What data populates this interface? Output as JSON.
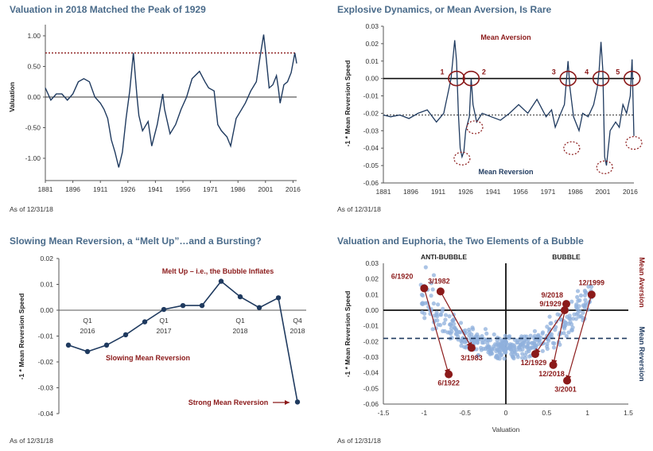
{
  "colors": {
    "title": "#4a6b8a",
    "series": "#1f3a5f",
    "accent": "#8b1a1a",
    "scatter": "#8fb0dc"
  },
  "panels": [
    {
      "title": "Valuation in 2018 Matched the Peak of 1929",
      "asof": "As of 12/31/18"
    },
    {
      "title": "Explosive Dynamics, or Mean Aversion, Is Rare",
      "asof": "As of 12/31/18"
    },
    {
      "title": "Slowing Mean Reversion, a “Melt Up”…and a Bursting?",
      "asof": "As of 12/31/18"
    },
    {
      "title": "Valuation and Euphoria, the Two Elements of a Bubble",
      "asof": "As of 12/31/18"
    }
  ],
  "chart_data": [
    {
      "type": "line",
      "title": "Valuation in 2018 Matched the Peak of 1929",
      "ylabel": "Valuation",
      "xlim": [
        1881,
        2018
      ],
      "ylim": [
        -1.25,
        1.1
      ],
      "xticks": [
        "1881",
        "1896",
        "1911",
        "1926",
        "1941",
        "1956",
        "1971",
        "1986",
        "2001",
        "2016"
      ],
      "yticks": [
        "1.00",
        "0.50",
        "0.00",
        "-0.50",
        "-1.00"
      ],
      "reference_line": {
        "value": 0.72,
        "style": "dotted"
      },
      "x": [
        1881,
        1884,
        1887,
        1890,
        1893,
        1896,
        1899,
        1902,
        1905,
        1908,
        1911,
        1913,
        1915,
        1917,
        1919,
        1921,
        1923,
        1925,
        1927,
        1929,
        1931,
        1932,
        1934,
        1937,
        1939,
        1942,
        1945,
        1946,
        1949,
        1952,
        1955,
        1958,
        1961,
        1965,
        1968,
        1970,
        1973,
        1975,
        1977,
        1980,
        1982,
        1985,
        1987,
        1990,
        1993,
        1996,
        1998,
        2000,
        2001,
        2003,
        2005,
        2007,
        2008,
        2009,
        2011,
        2013,
        2015,
        2017,
        2018
      ],
      "y": [
        0.15,
        -0.05,
        0.05,
        0.05,
        -0.05,
        0.05,
        0.25,
        0.3,
        0.25,
        0.0,
        -0.1,
        -0.2,
        -0.35,
        -0.7,
        -0.9,
        -1.15,
        -0.9,
        -0.35,
        0.1,
        0.72,
        0.0,
        -0.3,
        -0.55,
        -0.4,
        -0.8,
        -0.45,
        0.05,
        -0.2,
        -0.6,
        -0.45,
        -0.2,
        0.0,
        0.3,
        0.42,
        0.25,
        0.15,
        0.1,
        -0.45,
        -0.55,
        -0.65,
        -0.8,
        -0.35,
        -0.25,
        -0.1,
        0.1,
        0.25,
        0.65,
        1.02,
        0.75,
        0.15,
        0.2,
        0.35,
        0.15,
        -0.1,
        0.2,
        0.25,
        0.4,
        0.72,
        0.55
      ]
    },
    {
      "type": "line",
      "title": "Explosive Dynamics, or Mean Aversion, Is Rare",
      "ylabel": "-1 * Mean Reversion Speed",
      "xlim": [
        1881,
        2018
      ],
      "ylim": [
        -0.06,
        0.03
      ],
      "xticks": [
        "1881",
        "1896",
        "1911",
        "1926",
        "1941",
        "1956",
        "1971",
        "1986",
        "2001",
        "2016"
      ],
      "yticks": [
        "0.03",
        "0.02",
        "0.01",
        "0.00",
        "-0.01",
        "-0.02",
        "-0.03",
        "-0.04",
        "-0.05",
        "-0.06"
      ],
      "reference_line": {
        "value": -0.021,
        "style": "dotted"
      },
      "annotations": [
        "Mean Aversion",
        "Mean Reversion"
      ],
      "episode_labels": [
        "1",
        "2",
        "3",
        "4",
        "5"
      ],
      "x": [
        1881,
        1885,
        1890,
        1895,
        1900,
        1905,
        1910,
        1914,
        1916,
        1918,
        1920,
        1921,
        1922,
        1923,
        1924,
        1925,
        1926,
        1928,
        1929,
        1930,
        1932,
        1935,
        1940,
        1945,
        1950,
        1955,
        1960,
        1965,
        1970,
        1973,
        1975,
        1978,
        1980,
        1982,
        1983,
        1985,
        1988,
        1990,
        1993,
        1996,
        1998,
        1999,
        2000,
        2001,
        2002,
        2003,
        2005,
        2008,
        2010,
        2012,
        2014,
        2016,
        2017,
        2018
      ],
      "y": [
        -0.021,
        -0.022,
        -0.021,
        -0.023,
        -0.02,
        -0.018,
        -0.025,
        -0.02,
        -0.01,
        0.0,
        0.022,
        0.01,
        -0.02,
        -0.04,
        -0.045,
        -0.042,
        -0.03,
        -0.022,
        0.0,
        -0.015,
        -0.025,
        -0.02,
        -0.022,
        -0.024,
        -0.02,
        -0.015,
        -0.02,
        -0.012,
        -0.022,
        -0.018,
        -0.028,
        -0.02,
        -0.015,
        0.01,
        -0.005,
        -0.022,
        -0.03,
        -0.02,
        -0.022,
        -0.015,
        -0.005,
        0.005,
        0.021,
        0.005,
        -0.045,
        -0.05,
        -0.03,
        -0.025,
        -0.028,
        -0.015,
        -0.02,
        -0.01,
        0.011,
        -0.033
      ]
    },
    {
      "type": "line",
      "title": "Slowing Mean Reversion, a “Melt Up”…and a Bursting?",
      "ylabel": "-1 * Mean Reversion Speed",
      "ylim": [
        -0.04,
        0.02
      ],
      "yticks": [
        "0.02",
        "0.01",
        "0.00",
        "-0.01",
        "-0.02",
        "-0.03",
        "-0.04"
      ],
      "x_labels": [
        {
          "q": "Q1",
          "y": "2016"
        },
        {
          "q": "Q1",
          "y": "2017"
        },
        {
          "q": "Q1",
          "y": "2018"
        },
        {
          "q": "Q4",
          "y": "2018"
        }
      ],
      "annotations": [
        "Melt Up – i.e., the Bubble Inflates",
        "Slowing Mean Reversion",
        "Strong Mean Reversion"
      ],
      "values": [
        -0.0135,
        -0.016,
        -0.0135,
        -0.0095,
        -0.0045,
        0.0003,
        0.0018,
        0.0018,
        0.0112,
        0.0052,
        0.001,
        0.0048,
        -0.0355
      ]
    },
    {
      "type": "scatter",
      "title": "Valuation and Euphoria, the Two Elements of a Bubble",
      "xlabel": "Valuation",
      "ylabel": "-1 * Mean Reversion Speed",
      "xlim": [
        -1.5,
        1.5
      ],
      "ylim": [
        -0.06,
        0.03
      ],
      "xticks": [
        "-1.5",
        "-1",
        "-0.5",
        "0",
        "0.5",
        "1",
        "1.5"
      ],
      "yticks": [
        "0.03",
        "0.02",
        "0.01",
        "0.00",
        "-0.01",
        "-0.02",
        "-0.03",
        "-0.04",
        "-0.05",
        "-0.06"
      ],
      "zones": [
        "ANTI-BUBBLE",
        "BUBBLE"
      ],
      "side_labels": [
        "Mean Aversion",
        "Mean Reversion"
      ],
      "reference_line": {
        "value": -0.018,
        "style": "dashed"
      },
      "highlighted": [
        {
          "label": "6/1920",
          "x": -1.0,
          "y": 0.014
        },
        {
          "label": "6/1922",
          "x": -0.7,
          "y": -0.041
        },
        {
          "label": "3/1982",
          "x": -0.8,
          "y": 0.012
        },
        {
          "label": "3/1983",
          "x": -0.42,
          "y": -0.024
        },
        {
          "label": "9/1929",
          "x": 0.72,
          "y": 0.0
        },
        {
          "label": "12/1929",
          "x": 0.36,
          "y": -0.028
        },
        {
          "label": "9/2018",
          "x": 0.74,
          "y": 0.004
        },
        {
          "label": "12/2018",
          "x": 0.58,
          "y": -0.035
        },
        {
          "label": "12/1999",
          "x": 1.05,
          "y": 0.01
        },
        {
          "label": "3/2001",
          "x": 0.75,
          "y": -0.045
        }
      ],
      "arrows": [
        [
          "6/1920",
          "6/1922"
        ],
        [
          "3/1982",
          "3/1983"
        ],
        [
          "9/1929",
          "12/1929"
        ],
        [
          "9/2018",
          "12/2018"
        ],
        [
          "12/1999",
          "3/2001"
        ]
      ],
      "cloud": {
        "n": 420,
        "center_y": -0.024,
        "curvature": 0.028,
        "spread": 0.006
      }
    }
  ]
}
